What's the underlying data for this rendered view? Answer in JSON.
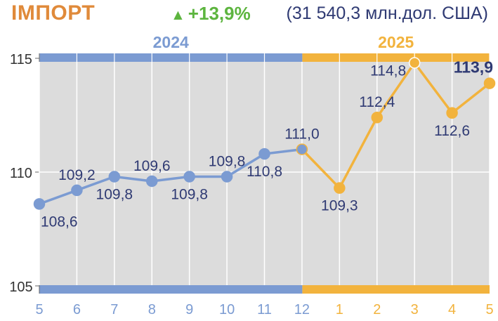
{
  "header": {
    "title": "ІМПОРТ",
    "growth": "+13,9%",
    "value_note": "(31 540,3 млн.дол. США)"
  },
  "colors": {
    "title": "#E08A3A",
    "growth": "#5DB53F",
    "year_2024": "#7B9BD2",
    "year_2025": "#F2B33D",
    "plot_bg": "#DCDCDC",
    "label": "#2F3A73"
  },
  "chart_data": {
    "type": "line",
    "title": "ІМПОРТ",
    "year_labels": [
      "2024",
      "2025"
    ],
    "categories": [
      "5",
      "6",
      "7",
      "8",
      "9",
      "10",
      "11",
      "12",
      "1",
      "2",
      "3",
      "4",
      "5"
    ],
    "series": [
      {
        "values": [
          108.6,
          109.2,
          109.8,
          109.6,
          109.8,
          109.8,
          110.8,
          111.0,
          109.3,
          112.4,
          114.8,
          112.6,
          113.9
        ]
      }
    ],
    "point_years": [
      "2024",
      "2024",
      "2024",
      "2024",
      "2024",
      "2024",
      "2024",
      "2024",
      "2025",
      "2025",
      "2025",
      "2025",
      "2025"
    ],
    "data_labels": [
      "108,6",
      "109,2",
      "109,8",
      "109,6",
      "109,8",
      "109,8",
      "110,8",
      "111,0",
      "109,3",
      "112,4",
      "114,8",
      "112,6",
      "113,9"
    ],
    "label_positions": [
      "below",
      "above",
      "below",
      "above",
      "below",
      "above",
      "below",
      "above",
      "below",
      "above",
      "above",
      "below",
      "above"
    ],
    "y_ticks": [
      "105",
      "110",
      "115"
    ],
    "y_tick_values": [
      105,
      110,
      115
    ],
    "ylim": [
      105,
      115
    ],
    "grid": true,
    "xlabel": "",
    "ylabel": ""
  }
}
